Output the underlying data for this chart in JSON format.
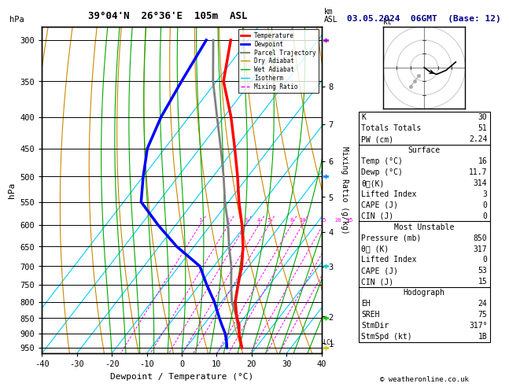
{
  "title_left": "39°04'N  26°36'E  105m  ASL",
  "title_right": "03.05.2024  06GMT  (Base: 12)",
  "xlabel": "Dewpoint / Temperature (°C)",
  "P_min": 285,
  "P_max": 970,
  "T_min": -40,
  "T_max": 40,
  "skew_deg": 42,
  "pressure_levels": [
    300,
    350,
    400,
    450,
    500,
    550,
    600,
    650,
    700,
    750,
    800,
    850,
    900,
    950
  ],
  "km_pressures": [
    934,
    845,
    701,
    616,
    540,
    472,
    411,
    357
  ],
  "km_labels": [
    "1",
    "2",
    "3",
    "4",
    "5",
    "6",
    "7",
    "8"
  ],
  "lcl_pressure": 930,
  "mixing_ratio_values": [
    1,
    2,
    3,
    4,
    5,
    8,
    10,
    15,
    20,
    25
  ],
  "temp_profile_p": [
    950,
    925,
    900,
    870,
    850,
    800,
    750,
    700,
    650,
    600,
    550,
    500,
    450,
    400,
    350,
    300
  ],
  "temp_profile_t": [
    16,
    14,
    12,
    10,
    8,
    4,
    1,
    -2,
    -6,
    -11,
    -17,
    -23,
    -30,
    -38,
    -48,
    -55
  ],
  "dewp_profile_p": [
    950,
    925,
    900,
    870,
    850,
    800,
    750,
    700,
    650,
    600,
    550,
    500,
    450,
    400,
    350,
    300
  ],
  "dewp_profile_t": [
    11.7,
    10,
    8,
    5,
    3,
    -2,
    -8,
    -14,
    -25,
    -35,
    -45,
    -50,
    -55,
    -58,
    -60,
    -62
  ],
  "parcel_profile_p": [
    950,
    925,
    900,
    870,
    850,
    800,
    750,
    700,
    650,
    600,
    550,
    500,
    450,
    400,
    350,
    300
  ],
  "parcel_profile_t": [
    16,
    14,
    12,
    9.5,
    8,
    3,
    -1,
    -5,
    -10,
    -15,
    -21,
    -27,
    -34,
    -42,
    -51,
    -60
  ],
  "color_temp": "#ff0000",
  "color_dewp": "#0000ff",
  "color_parcel": "#808080",
  "color_dry": "#cc8800",
  "color_wet": "#00aa00",
  "color_isotherm": "#00ccff",
  "color_mixing": "#ff00ff",
  "info_K": 30,
  "info_TT": 51,
  "info_PW": "2.24",
  "surf_temp": "16",
  "surf_dewp": "11.7",
  "surf_theta_e": "314",
  "surf_li": "3",
  "surf_cape": "0",
  "surf_cin": "0",
  "mu_pres": "850",
  "mu_theta_e": "317",
  "mu_li": "0",
  "mu_cape": "53",
  "mu_cin": "15",
  "hodo_eh": "24",
  "hodo_sreh": "75",
  "hodo_stmdir": "317°",
  "hodo_stmspd": "1B",
  "copyright": "© weatheronline.co.uk",
  "wind_barb_pressures": [
    300,
    500,
    700,
    850,
    950
  ],
  "wind_barb_colors": [
    "#9900cc",
    "#0088ff",
    "#00cccc",
    "#00cc00",
    "#cccc00"
  ]
}
